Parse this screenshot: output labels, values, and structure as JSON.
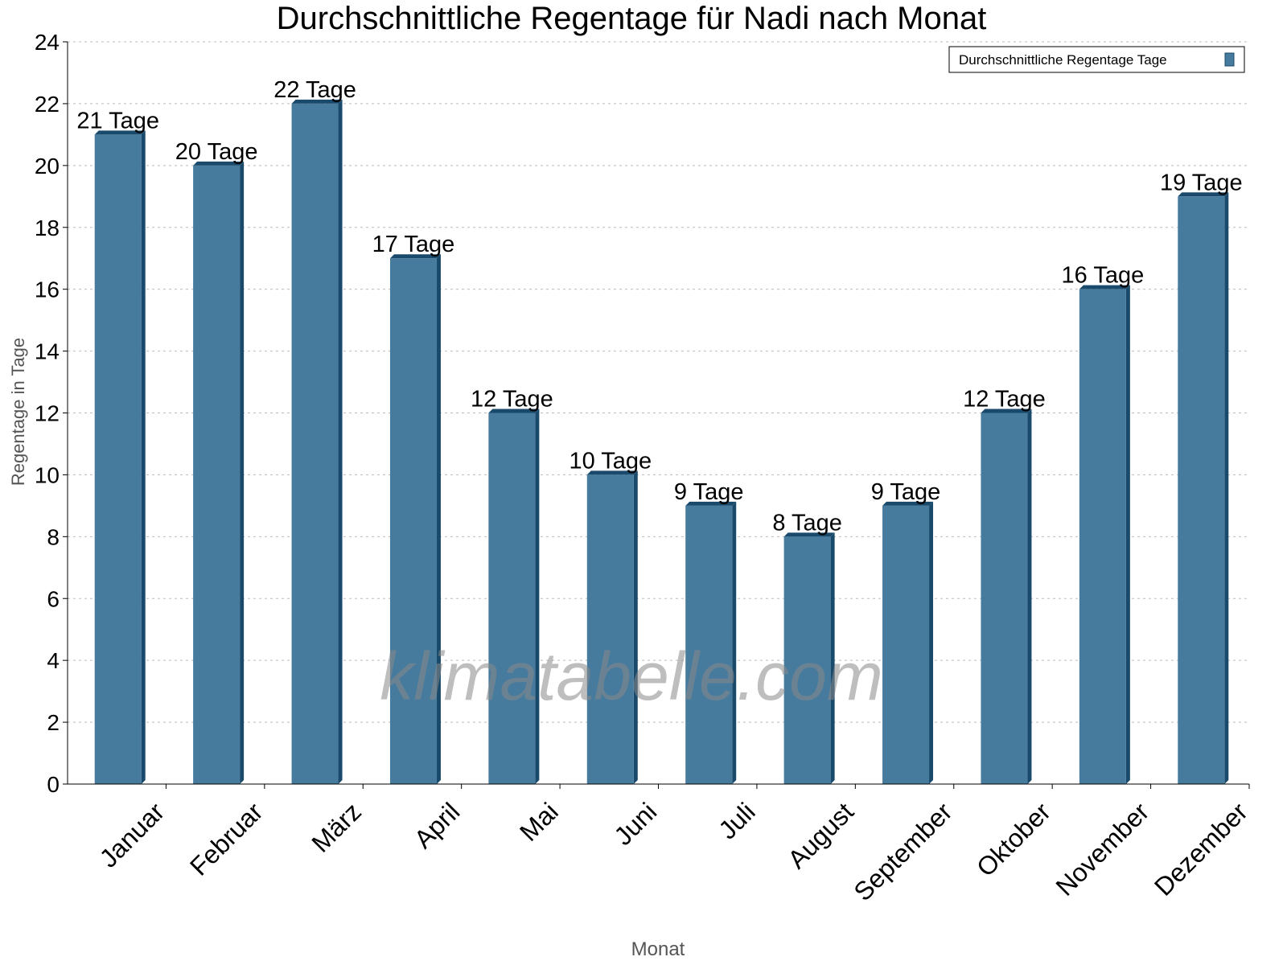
{
  "chart_data": {
    "type": "bar",
    "title": "Durchschnittliche Regentage für Nadi nach Monat",
    "xlabel": "Monat",
    "ylabel": "Regentage in Tage",
    "ylim": [
      0,
      24
    ],
    "yticks": [
      0,
      2,
      4,
      6,
      8,
      10,
      12,
      14,
      16,
      18,
      20,
      22,
      24
    ],
    "grid": true,
    "legend_position": "top-right",
    "categories": [
      "Januar",
      "Februar",
      "März",
      "April",
      "Mai",
      "Juni",
      "Juli",
      "August",
      "September",
      "Oktober",
      "November",
      "Dezember"
    ],
    "series": [
      {
        "name": "Durchschnittliche Regentage Tage",
        "values": [
          21,
          20,
          22,
          17,
          12,
          10,
          9,
          8,
          9,
          12,
          16,
          19
        ],
        "data_labels": [
          "21 Tage",
          "20 Tage",
          "22 Tage",
          "17 Tage",
          "12 Tage",
          "10 Tage",
          "9 Tage",
          "8 Tage",
          "9 Tage",
          "12 Tage",
          "16 Tage",
          "19 Tage"
        ]
      }
    ],
    "colors": {
      "bar_face": "#467b9e",
      "bar_side": "#1a4a6b"
    },
    "watermark": "klimatabelle.com"
  }
}
